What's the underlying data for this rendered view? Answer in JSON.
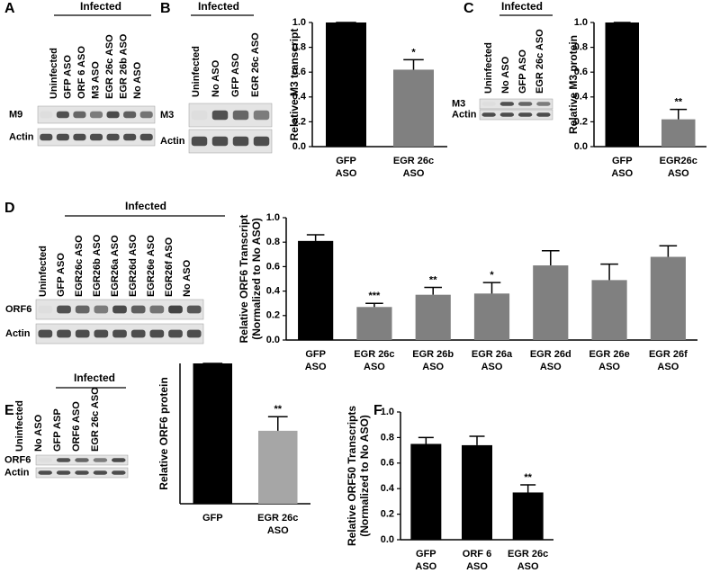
{
  "panels": [
    {
      "letter": "A",
      "header": "Infected",
      "lanes": [
        "Uninfected",
        "GFP ASO",
        "ORF 6 ASO",
        "M3 ASO",
        "EGR 26c ASO",
        "EGR 26b ASO",
        "No ASO"
      ],
      "rows": [
        "M9",
        "Actin"
      ]
    },
    {
      "letter": "B",
      "header": "Infected",
      "lanes": [
        "Uninfected",
        "No ASO",
        "GFP ASO",
        "EGR 26c ASO"
      ],
      "rows": [
        "M3",
        "Actin"
      ]
    },
    {
      "letter": "C",
      "header": "Infected",
      "lanes": [
        "Uninfected",
        "No ASO",
        "GFP ASO",
        "EGR 26c ASO"
      ],
      "rows": [
        "M3",
        "Actin"
      ]
    },
    {
      "letter": "D",
      "header": "Infected",
      "lanes": [
        "Uninfected",
        "GFP ASO",
        "EGR26c ASO",
        "EGR26b ASO",
        "EGR26a ASO",
        "EGR26d ASO",
        "EGR26e ASO",
        "EGR26f ASO",
        "No ASO"
      ],
      "rows": [
        "ORF6",
        "Actin"
      ]
    },
    {
      "letter": "E",
      "header": "Infected",
      "lanes": [
        "Uninfected",
        "No ASO",
        "GFP ASP",
        "ORF6 ASO",
        "EGR 26c ASO"
      ],
      "rows": [
        "ORF6",
        "Actin"
      ]
    },
    {
      "letter": "F"
    }
  ],
  "chart_data": [
    {
      "type": "bar",
      "ylabel": [
        "Relative M3 transcript"
      ],
      "categories": [
        "GFP ASO",
        "EGR 26c ASO"
      ],
      "values": [
        1.0,
        0.62
      ],
      "errors": [
        0,
        0.08
      ],
      "annotations": [
        null,
        "*"
      ],
      "colors": [
        "#000000",
        "#808080"
      ],
      "ylim": [
        0,
        1
      ],
      "yticks": [
        {
          "value": 0,
          "label": "0.0"
        },
        0.2,
        0.4,
        0.6,
        0.8,
        {
          "value": 1,
          "label": "1.0"
        }
      ]
    },
    {
      "type": "bar",
      "ylabel": [
        "Relative M3 protein"
      ],
      "categories": [
        "GFP ASO",
        "EGR26c ASO"
      ],
      "values": [
        1.0,
        0.22
      ],
      "errors": [
        0,
        0.08
      ],
      "annotations": [
        null,
        "**"
      ],
      "colors": [
        "#000000",
        "#808080"
      ],
      "ylim": [
        0,
        1
      ],
      "yticks": [
        {
          "value": 0,
          "label": "0.0"
        },
        0.2,
        0.4,
        0.6,
        0.8,
        {
          "value": 1,
          "label": "1.0"
        }
      ]
    },
    {
      "type": "bar",
      "ylabel": [
        "Relative ORF6 Transcript",
        "(Normalized to No ASO)"
      ],
      "categories": [
        "GFP ASO",
        "EGR 26c ASO",
        "EGR 26b ASO",
        "EGR 26a ASO",
        "EGR 26d ASO",
        "EGR 26e ASO",
        "EGR 26f ASO"
      ],
      "values": [
        0.81,
        0.27,
        0.37,
        0.38,
        0.61,
        0.49,
        0.68
      ],
      "errors": [
        0.05,
        0.03,
        0.06,
        0.09,
        0.12,
        0.13,
        0.09
      ],
      "annotations": [
        null,
        "***",
        "**",
        "*",
        null,
        null,
        null
      ],
      "colors": [
        "#000000",
        "#808080",
        "#808080",
        "#808080",
        "#808080",
        "#808080",
        "#808080"
      ],
      "ylim": [
        0,
        1
      ],
      "yticks": [
        {
          "value": 0,
          "label": "0.0"
        },
        0.2,
        0.4,
        0.6,
        0.8,
        {
          "value": 1,
          "label": "1.0"
        }
      ]
    },
    {
      "type": "bar",
      "ylabel": [
        "Relative ORF6 protein"
      ],
      "categories": [
        "GFP",
        "EGR 26c ASO"
      ],
      "values": [
        1.0,
        0.52
      ],
      "errors": [
        0,
        0.1
      ],
      "annotations": [
        null,
        "**"
      ],
      "colors": [
        "#000000",
        "#a6a6a6"
      ],
      "ylim": [
        0,
        1
      ],
      "yticks": []
    },
    {
      "type": "bar",
      "ylabel": [
        "Relative ORF50 Transcripts",
        "(Normalized to No ASO)"
      ],
      "categories": [
        "GFP ASO",
        "ORF 6 ASO",
        "EGR 26c ASO"
      ],
      "values": [
        0.75,
        0.74,
        0.37
      ],
      "errors": [
        0.05,
        0.07,
        0.06
      ],
      "annotations": [
        null,
        null,
        "**"
      ],
      "colors": [
        "#000000",
        "#000000",
        "#000000"
      ],
      "ylim": [
        0,
        1
      ],
      "yticks": [
        {
          "value": 0,
          "label": "0.0"
        },
        0.2,
        0.4,
        0.6,
        0.8,
        {
          "value": 1,
          "label": "1.0"
        }
      ]
    }
  ]
}
